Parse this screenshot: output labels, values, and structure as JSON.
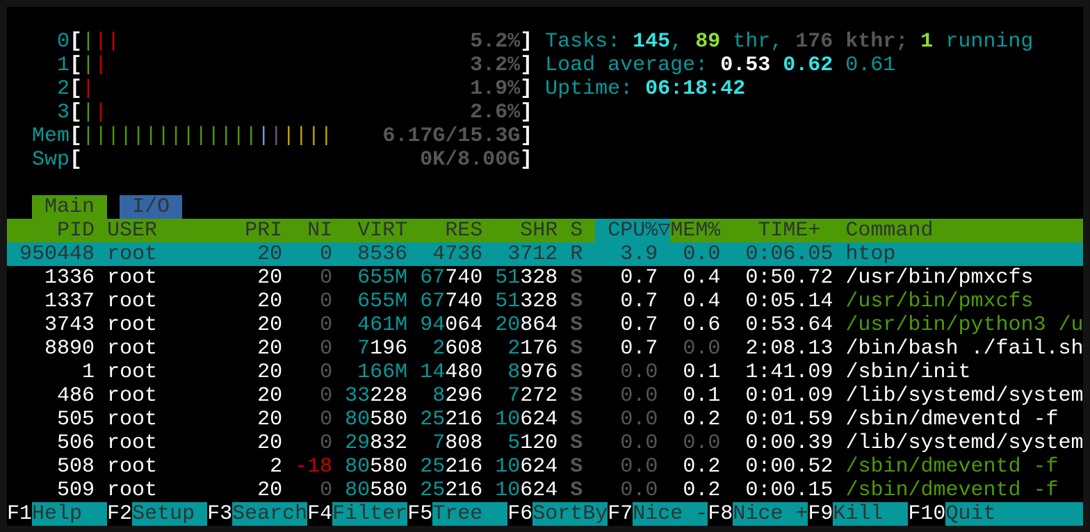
{
  "colors": {
    "cyan": "#06989a",
    "green": "#4e9a06",
    "blue": "#3465a4",
    "red": "#cc0000",
    "bright_cyan": "#34e2e2"
  },
  "meters": [
    {
      "label": "0",
      "bars": [
        "green",
        "red",
        "red"
      ],
      "value": "5.2%"
    },
    {
      "label": "1",
      "bars": [
        "green",
        "red"
      ],
      "value": "3.2%"
    },
    {
      "label": "2",
      "bars": [
        "red"
      ],
      "value": "1.9%"
    },
    {
      "label": "3",
      "bars": [
        "green",
        "red"
      ],
      "value": "2.6%"
    },
    {
      "label": "Mem",
      "bars": [
        "green",
        "green",
        "green",
        "green",
        "green",
        "green",
        "green",
        "green",
        "green",
        "green",
        "green",
        "green",
        "green",
        "green",
        "blue",
        "magenta",
        "yellow",
        "yellow",
        "yellow",
        "yellow"
      ],
      "value": "6.17G/15.3G"
    },
    {
      "label": "Swp",
      "bars": [],
      "value": "0K/8.00G"
    }
  ],
  "summary": {
    "tasks_label": "Tasks: ",
    "tasks": "145",
    "threads": "89",
    "thr_label": " thr, ",
    "kthreads": "176",
    "kthr_label": " kthr; ",
    "running": "1",
    "running_label": " running",
    "load_label": "Load average: ",
    "load1": "0.53",
    "load5": "0.62",
    "load15": "0.61",
    "uptime_label": "Uptime: ",
    "uptime": "06:18:42"
  },
  "tabs": [
    {
      "label": "Main",
      "active": true
    },
    {
      "label": "I/O",
      "active": false
    }
  ],
  "columns": {
    "pid": "PID",
    "user": "USER",
    "pri": "PRI",
    "ni": "NI",
    "virt": "VIRT",
    "res": "RES",
    "shr": "SHR",
    "s": "S",
    "cpu": "CPU%",
    "sort_indicator": "▽",
    "mem": "MEM%",
    "time": "TIME+",
    "command": "Command"
  },
  "sort_column": "CPU%",
  "processes": [
    {
      "pid": "950448",
      "user": "root",
      "pri": "20",
      "ni": "0",
      "virt": "8536",
      "res": "4736",
      "shr": "3712",
      "s": "R",
      "cpu": "3.9",
      "mem": "0.0",
      "time": "0:06.05",
      "command": "htop",
      "selected": true,
      "thread": false
    },
    {
      "pid": "1336",
      "user": "root",
      "pri": "20",
      "ni": "0",
      "virt": "655M",
      "res": "67740",
      "shr": "51328",
      "s": "S",
      "cpu": "0.7",
      "mem": "0.4",
      "time": "0:50.72",
      "command": "/usr/bin/pmxcfs",
      "thread": false
    },
    {
      "pid": "1337",
      "user": "root",
      "pri": "20",
      "ni": "0",
      "virt": "655M",
      "res": "67740",
      "shr": "51328",
      "s": "S",
      "cpu": "0.7",
      "mem": "0.4",
      "time": "0:05.14",
      "command": "/usr/bin/pmxcfs",
      "thread": true
    },
    {
      "pid": "3743",
      "user": "root",
      "pri": "20",
      "ni": "0",
      "virt": "461M",
      "res": "94064",
      "shr": "20864",
      "s": "S",
      "cpu": "0.7",
      "mem": "0.6",
      "time": "0:53.64",
      "command": "/usr/bin/python3 /u",
      "thread": true
    },
    {
      "pid": "8890",
      "user": "root",
      "pri": "20",
      "ni": "0",
      "virt": "7196",
      "res": "2608",
      "shr": "2176",
      "s": "S",
      "cpu": "0.7",
      "mem": "0.0",
      "time": "2:08.13",
      "command": "/bin/bash ./fail.sh",
      "thread": false
    },
    {
      "pid": "1",
      "user": "root",
      "pri": "20",
      "ni": "0",
      "virt": "166M",
      "res": "14480",
      "shr": "8976",
      "s": "S",
      "cpu": "0.0",
      "mem": "0.1",
      "time": "1:41.09",
      "command": "/sbin/init",
      "thread": false
    },
    {
      "pid": "486",
      "user": "root",
      "pri": "20",
      "ni": "0",
      "virt": "33228",
      "res": "8296",
      "shr": "7272",
      "s": "S",
      "cpu": "0.0",
      "mem": "0.1",
      "time": "0:01.09",
      "command": "/lib/systemd/system",
      "thread": false
    },
    {
      "pid": "505",
      "user": "root",
      "pri": "20",
      "ni": "0",
      "virt": "80580",
      "res": "25216",
      "shr": "10624",
      "s": "S",
      "cpu": "0.0",
      "mem": "0.2",
      "time": "0:01.59",
      "command": "/sbin/dmeventd -f",
      "thread": false
    },
    {
      "pid": "506",
      "user": "root",
      "pri": "20",
      "ni": "0",
      "virt": "29832",
      "res": "7808",
      "shr": "5120",
      "s": "S",
      "cpu": "0.0",
      "mem": "0.0",
      "time": "0:00.39",
      "command": "/lib/systemd/system",
      "thread": false
    },
    {
      "pid": "508",
      "user": "root",
      "pri": "2",
      "ni": "-18",
      "virt": "80580",
      "res": "25216",
      "shr": "10624",
      "s": "S",
      "cpu": "0.0",
      "mem": "0.2",
      "time": "0:00.52",
      "command": "/sbin/dmeventd -f",
      "thread": true
    },
    {
      "pid": "509",
      "user": "root",
      "pri": "20",
      "ni": "0",
      "virt": "80580",
      "res": "25216",
      "shr": "10624",
      "s": "S",
      "cpu": "0.0",
      "mem": "0.2",
      "time": "0:00.15",
      "command": "/sbin/dmeventd -f",
      "thread": true
    }
  ],
  "footer": [
    {
      "key": "F1",
      "label": "Help"
    },
    {
      "key": "F2",
      "label": "Setup"
    },
    {
      "key": "F3",
      "label": "Search"
    },
    {
      "key": "F4",
      "label": "Filter"
    },
    {
      "key": "F5",
      "label": "Tree"
    },
    {
      "key": "F6",
      "label": "SortBy"
    },
    {
      "key": "F7",
      "label": "Nice -"
    },
    {
      "key": "F8",
      "label": "Nice +"
    },
    {
      "key": "F9",
      "label": "Kill"
    },
    {
      "key": "F10",
      "label": "Quit"
    }
  ]
}
